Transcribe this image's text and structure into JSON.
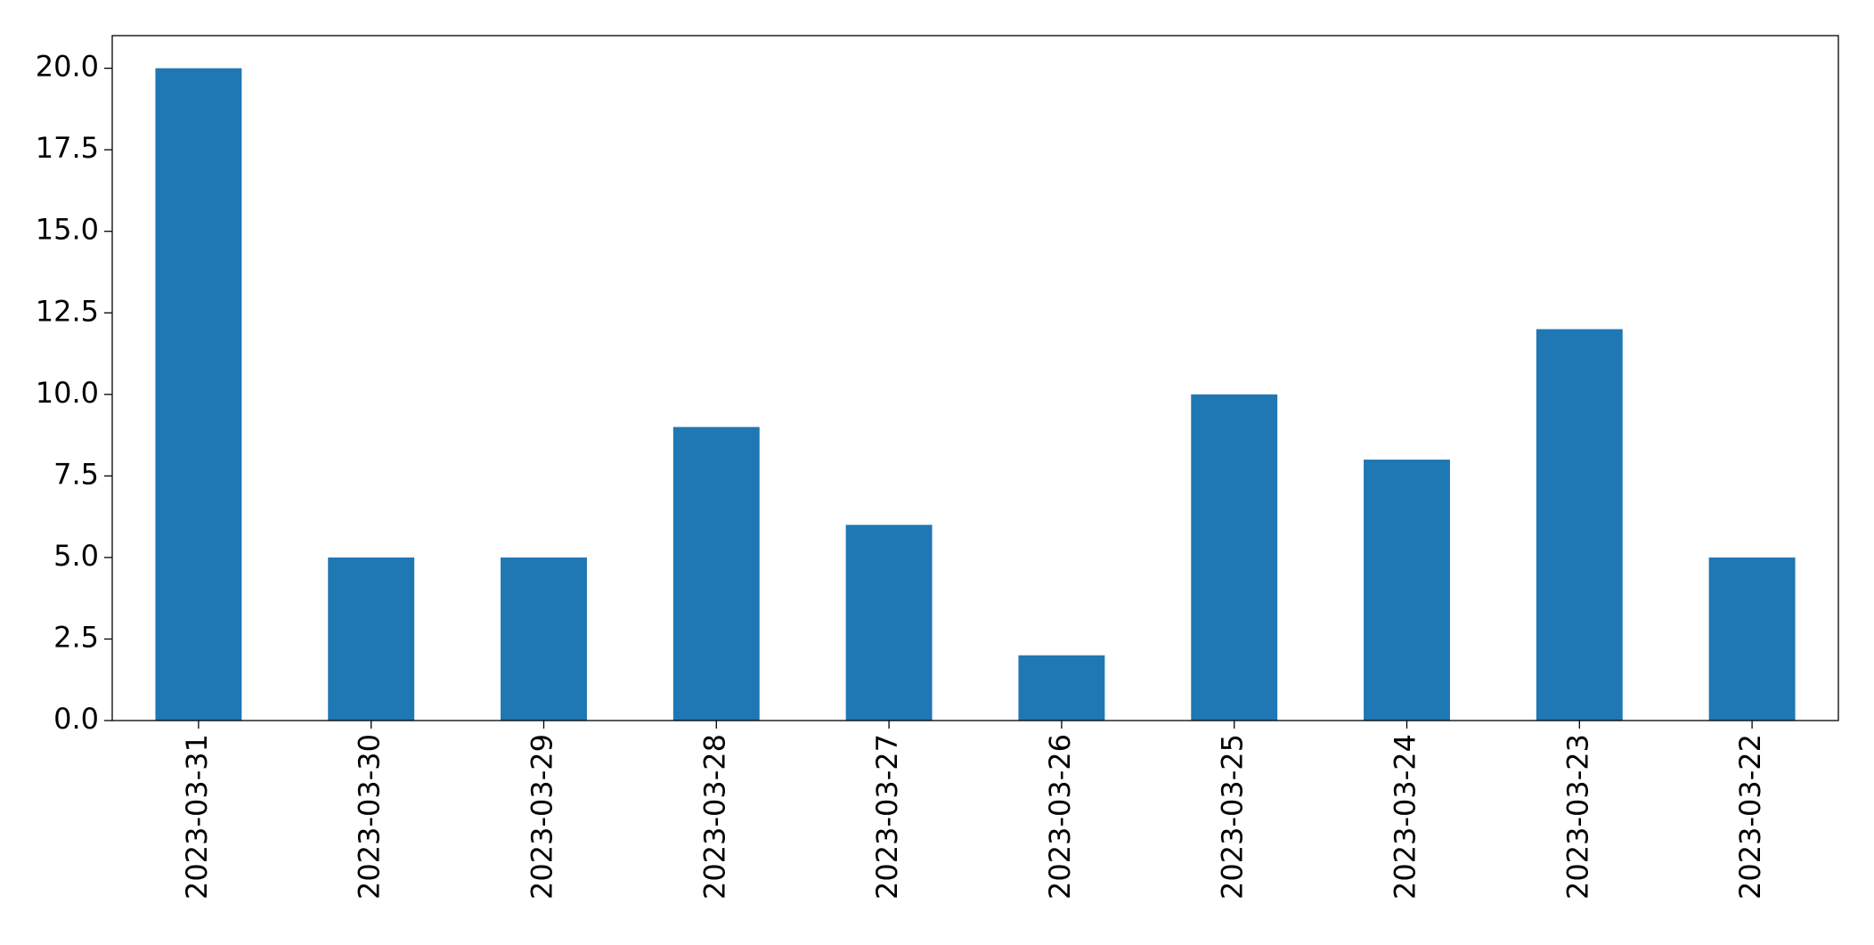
{
  "chart_data": {
    "type": "bar",
    "categories": [
      "2023-03-31",
      "2023-03-30",
      "2023-03-29",
      "2023-03-28",
      "2023-03-27",
      "2023-03-26",
      "2023-03-25",
      "2023-03-24",
      "2023-03-23",
      "2023-03-22"
    ],
    "values": [
      20,
      5,
      5,
      9,
      6,
      2,
      10,
      8,
      12,
      5
    ],
    "color": "#1f77b4",
    "ylim": [
      0,
      21
    ],
    "yticks": [
      {
        "value": 0,
        "label": "0.0"
      },
      2.5,
      {
        "value": 5,
        "label": "5.0"
      },
      7.5,
      {
        "value": 10,
        "label": "10.0"
      },
      12.5,
      {
        "value": 15,
        "label": "15.0"
      },
      17.5,
      {
        "value": 20,
        "label": "20.0"
      }
    ],
    "grid": false
  }
}
